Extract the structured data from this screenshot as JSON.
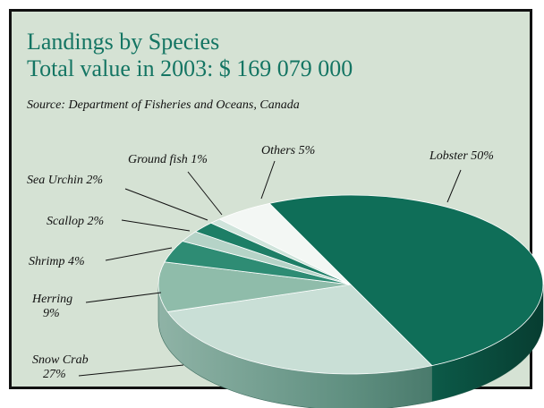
{
  "header": {
    "title_line1": "Landings by Species",
    "title_line2": "Total value in 2003: $ 169 079 000",
    "source": "Source: Department of Fisheries and Oceans, Canada"
  },
  "colors": {
    "background": "#d5e2d4",
    "title": "#147563",
    "lobster": "#0f6e58"
  },
  "chart_data": {
    "type": "pie",
    "title": "Landings by Species",
    "subtitle": "Total value in 2003: $ 169 079 000",
    "slices": [
      {
        "label": "Lobster",
        "value": 50,
        "value_label": "50%",
        "color": "#0f6e58"
      },
      {
        "label": "Snow Crab",
        "value": 27,
        "value_label": "27%",
        "color": "#c9dfd6"
      },
      {
        "label": "Herring",
        "value": 9,
        "value_label": "9%",
        "color": "#8fbcaa"
      },
      {
        "label": "Shrimp",
        "value": 4,
        "value_label": "4%",
        "color": "#2e8c74"
      },
      {
        "label": "Scallop",
        "value": 2,
        "value_label": "2%",
        "color": "#b5d3c7"
      },
      {
        "label": "Sea Urchin",
        "value": 2,
        "value_label": "2%",
        "color": "#1d7e66"
      },
      {
        "label": "Ground fish",
        "value": 1,
        "value_label": "1%",
        "color": "#cfe4db"
      },
      {
        "label": "Others",
        "value": 5,
        "value_label": "5%",
        "color": "#f3f7f4"
      }
    ]
  }
}
